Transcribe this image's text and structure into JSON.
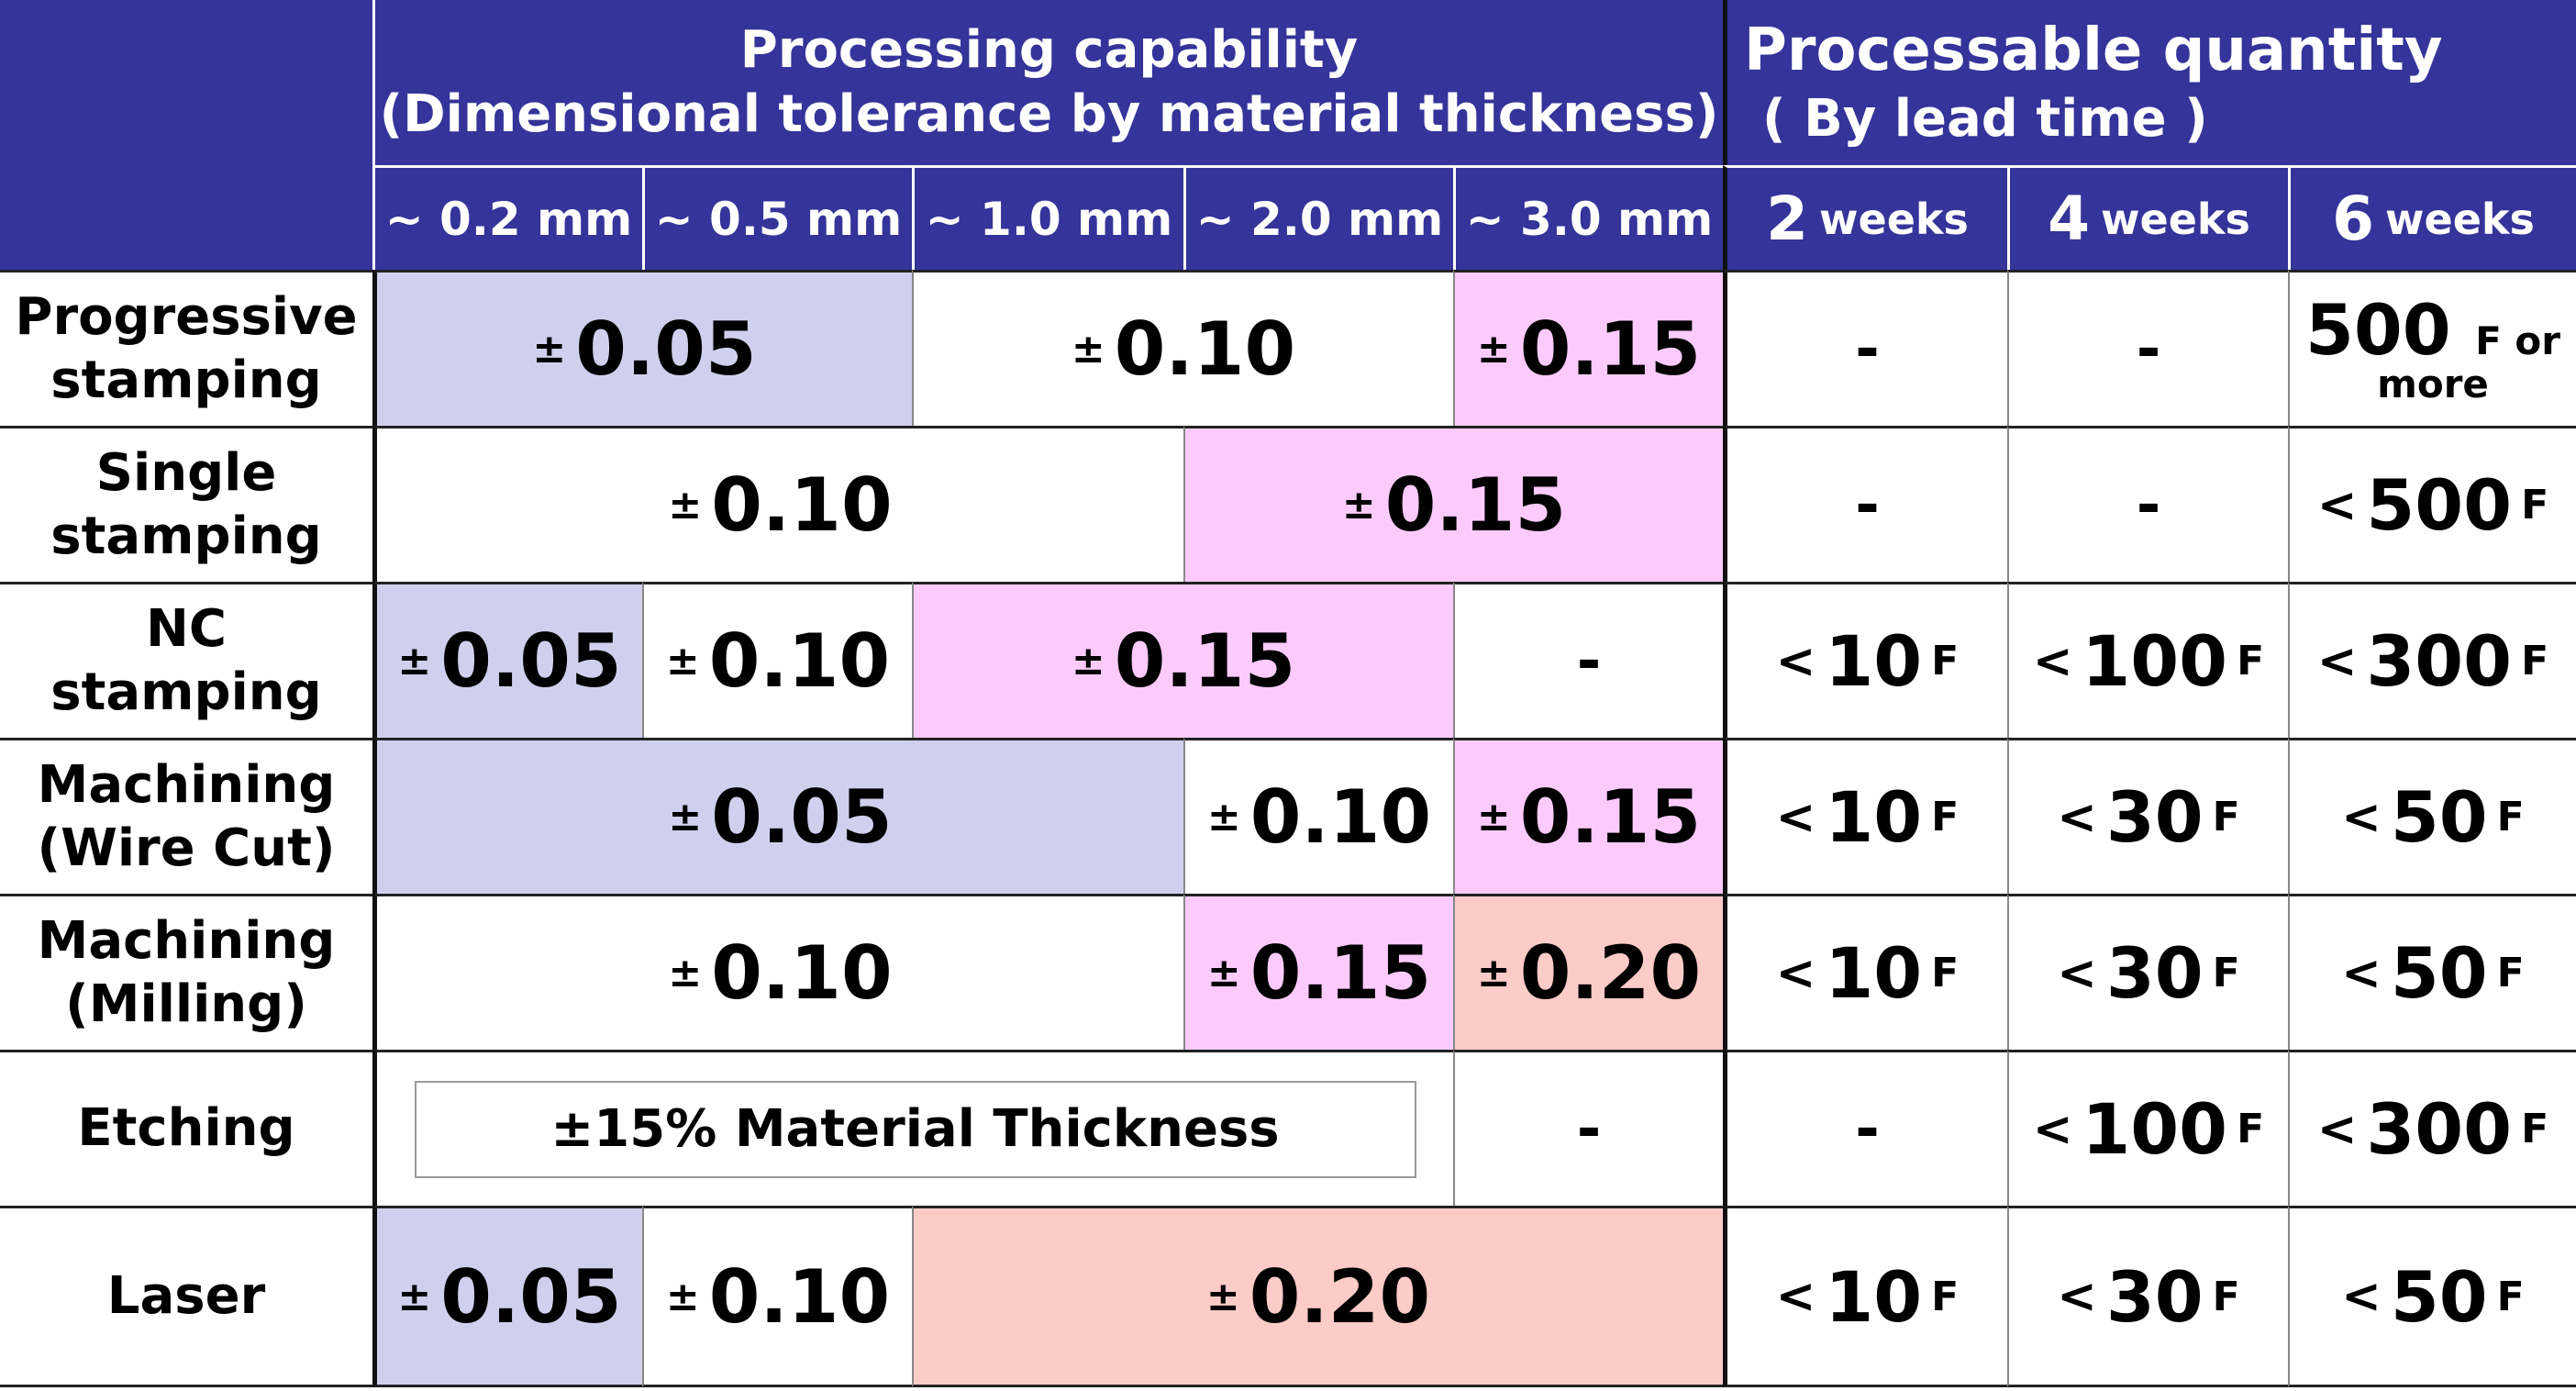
{
  "headers": {
    "capability_line1": "Processing capability",
    "capability_line2": "(Dimensional tolerance by material thickness)",
    "quantity_line1": "Processable quantity",
    "quantity_line2": "( By lead time )",
    "thickness": [
      "~ 0.2 mm",
      "~ 0.5 mm",
      "~ 1.0 mm",
      "~ 2.0 mm",
      "~ 3.0 mm"
    ],
    "weeks": [
      {
        "num": "2",
        "unit": "weeks"
      },
      {
        "num": "4",
        "unit": "weeks"
      },
      {
        "num": "6",
        "unit": "weeks"
      }
    ]
  },
  "symbols": {
    "pm": "±",
    "lt": "<",
    "f": "F",
    "dash": "-"
  },
  "rows": {
    "progressive": {
      "label1": "Progressive",
      "label2": "stamping",
      "tol": [
        "0.05",
        "0.10",
        "0.15"
      ],
      "qty6_num": "500",
      "qty6_suffix": "F or",
      "qty6_more": "more"
    },
    "single": {
      "label1": "Single",
      "label2": "stamping",
      "tol": [
        "0.10",
        "0.15"
      ],
      "qty6": "500"
    },
    "nc": {
      "label1": "NC",
      "label2": "stamping",
      "tol": [
        "0.05",
        "0.10",
        "0.15"
      ],
      "qty": [
        "10",
        "100",
        "300"
      ]
    },
    "wirecut": {
      "label1": "Machining",
      "label2": "(Wire Cut)",
      "tol": [
        "0.05",
        "0.10",
        "0.15"
      ],
      "qty": [
        "10",
        "30",
        "50"
      ]
    },
    "milling": {
      "label1": "Machining",
      "label2": "(Milling)",
      "tol": [
        "0.10",
        "0.15",
        "0.20"
      ],
      "qty": [
        "10",
        "30",
        "50"
      ]
    },
    "etching": {
      "label1": "Etching",
      "tol_text": "±15% Material Thickness",
      "qty": [
        "100",
        "300"
      ]
    },
    "laser": {
      "label1": "Laser",
      "tol": [
        "0.05",
        "0.10",
        "0.20"
      ],
      "qty": [
        "10",
        "30",
        "50"
      ]
    }
  },
  "colors": {
    "header": "#34349a",
    "blue": "#d0d0ee",
    "pink": "#fccbfc",
    "salmon": "#fdcbc8"
  }
}
